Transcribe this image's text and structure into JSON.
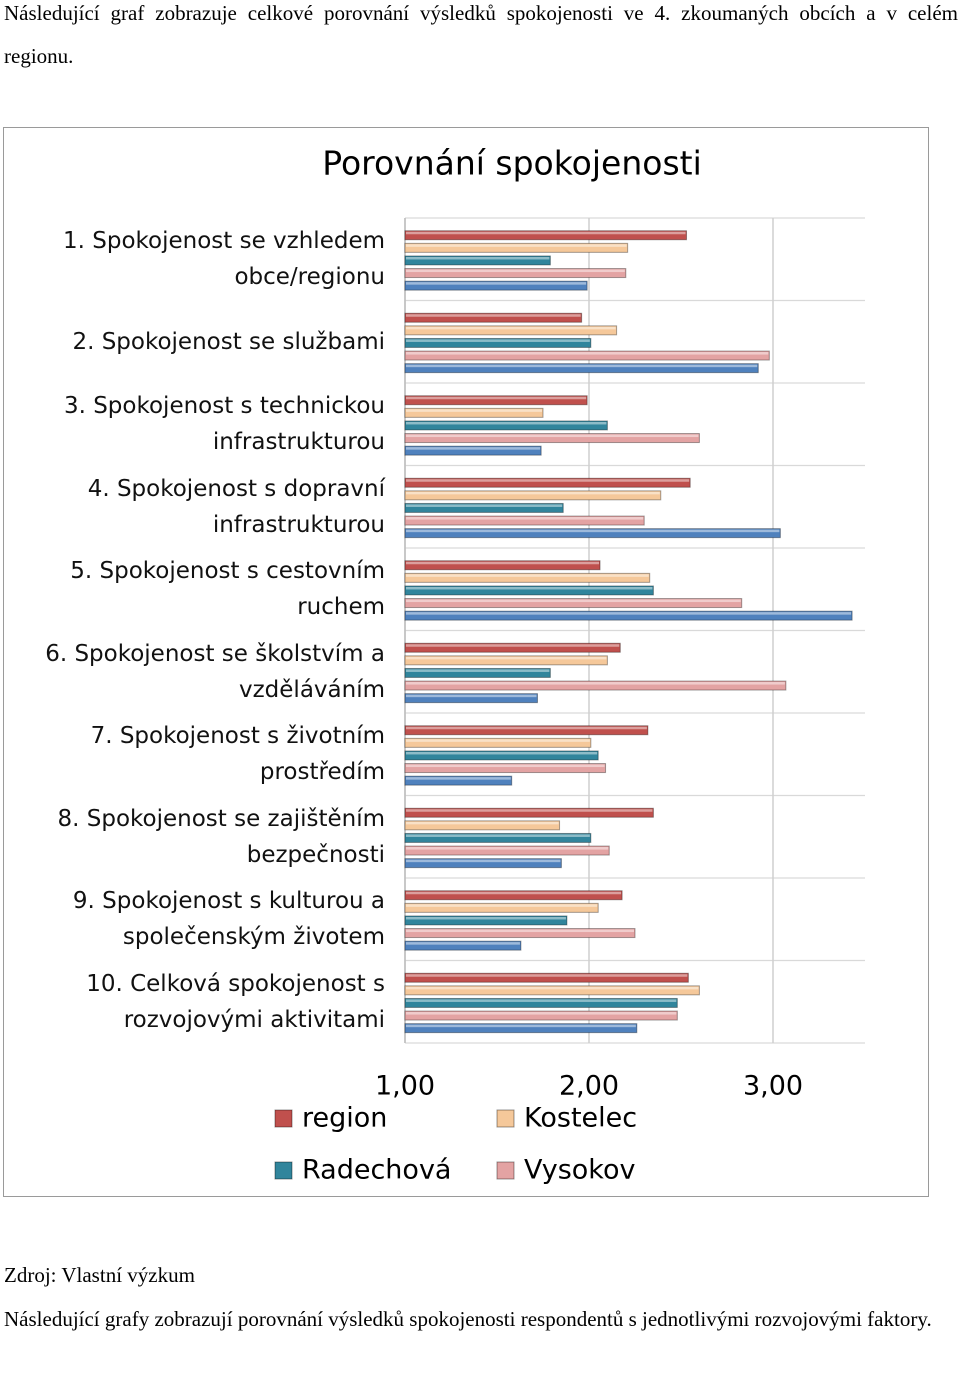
{
  "document": {
    "intro": "Následující graf zobrazuje celkové porovnání výsledků spokojenosti ve 4. zkoumaných obcích a v celém regionu.",
    "source": "Zdroj: Vlastní výzkum",
    "outro": "Následující grafy zobrazují porovnání výsledků spokojenosti respondentů s jednotlivými rozvojovými faktory."
  },
  "chart_data": {
    "type": "hbar",
    "title": "Porovnání spokojenosti",
    "categories": [
      "1. Spokojenost se vzhledem obce/regionu",
      "2. Spokojenost se službami",
      "3. Spokojenost s technickou infrastrukturou",
      "4. Spokojenost s dopravní infrastrukturou",
      "5. Spokojenost s cestovním ruchem",
      "6. Spokojenost se školstvím a vzděláváním",
      "7. Spokojenost s životním prostředím",
      "8. Spokojenost se zajištěním bezpečnosti",
      "9. Spokojenost s kulturou a společenským životem",
      "10. Celková spokojenost s rozvojovými aktivitami"
    ],
    "series": [
      {
        "name": "region",
        "color": "#c0504d",
        "values": [
          2.53,
          1.96,
          1.99,
          2.55,
          2.06,
          2.17,
          2.32,
          2.35,
          2.18,
          2.54
        ]
      },
      {
        "name": "Kostelec",
        "color": "#f5c89a",
        "values": [
          2.21,
          2.15,
          1.75,
          2.39,
          2.33,
          2.1,
          2.01,
          1.84,
          2.05,
          2.6
        ]
      },
      {
        "name": "Radechová",
        "color": "#31859c",
        "values": [
          1.79,
          2.01,
          2.1,
          1.86,
          2.35,
          1.79,
          2.05,
          2.01,
          1.88,
          2.48
        ]
      },
      {
        "name": "Vysokov",
        "color": "#e3a3a3",
        "values": [
          2.2,
          2.98,
          2.6,
          2.3,
          2.83,
          3.07,
          2.09,
          2.11,
          2.25,
          2.48
        ]
      },
      {
        "color": "#4f81bd",
        "values": [
          1.99,
          2.92,
          1.74,
          3.04,
          3.43,
          1.72,
          1.58,
          1.85,
          1.63,
          2.26
        ]
      }
    ],
    "xlim": [
      1,
      3.5
    ],
    "xticks": [
      {
        "value": 1,
        "label": "1,00"
      },
      {
        "value": 2,
        "label": "2,00"
      },
      {
        "value": 3,
        "label": "3,00"
      }
    ],
    "grid": true
  }
}
